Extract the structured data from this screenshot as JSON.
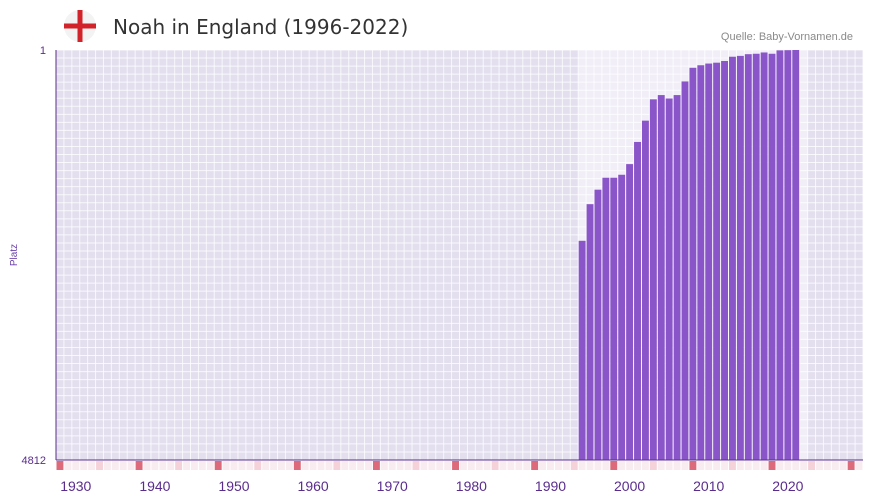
{
  "header": {
    "title": "Noah in England (1996-2022)",
    "source": "Quelle: Baby-Vornamen.de",
    "flag_icon": "england-flag-icon"
  },
  "colors": {
    "bar": "#8a55c8",
    "plot_bg": "#e3dfee",
    "plot_bg_light": "#f1eef8",
    "grid": "#ffffff",
    "axis": "#5a2d8c",
    "tick_strong": "#dd6a7a",
    "tick_light": "#f5d2da",
    "tick_faint": "#f9ecf1",
    "flag_red": "#d2232a"
  },
  "chart_data": {
    "type": "bar",
    "ylabel": "Platz",
    "y_axis_reversed": true,
    "ylim": [
      1,
      4812
    ],
    "ytick_labels": [
      "1",
      "4812"
    ],
    "xlim": [
      1928,
      2029
    ],
    "xtick_years": [
      1930,
      1940,
      1950,
      1960,
      1970,
      1980,
      1990,
      2000,
      2010,
      2020
    ],
    "xtick_labels": [
      "1930",
      "1940",
      "1950",
      "1960",
      "1970",
      "1980",
      "1990",
      "2000",
      "2010",
      "2020"
    ],
    "highlight_range": [
      1994,
      2022
    ],
    "series": [
      {
        "name": "Noah",
        "x": [
          1994,
          1995,
          1996,
          1997,
          1998,
          1999,
          2000,
          2001,
          2002,
          2003,
          2004,
          2005,
          2006,
          2007,
          2008,
          2009,
          2010,
          2011,
          2012,
          2013,
          2014,
          2015,
          2016,
          2017,
          2018,
          2019,
          2020,
          2021
        ],
        "values": [
          2240,
          1810,
          1640,
          1500,
          1500,
          1465,
          1340,
          1080,
          830,
          580,
          530,
          570,
          530,
          370,
          210,
          180,
          160,
          150,
          130,
          80,
          70,
          50,
          45,
          30,
          45,
          5,
          3,
          1
        ]
      }
    ]
  }
}
